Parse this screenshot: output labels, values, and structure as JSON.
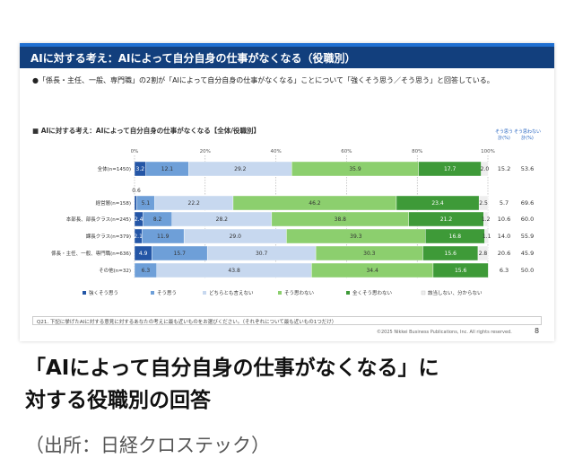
{
  "slide": {
    "header_title": "AIに対する考え：AIによって自分自身の仕事がなくなる（役職別）",
    "bullet": "●「係長・主任、一般、専門職」の2割が「AIによって自分自身の仕事がなくなる」ことについて「強くそう思う／そう思う」と回答している。",
    "chart_title": "■ AIに対する考え：AIによって自分自身の仕事がなくなる【全体/役職別】",
    "footnote": "Q21. 下記に挙げたAIに対する意見に対するあなたの考えに最も近いものをお選びください。（それぞれについて最も近いもの1つだけ）",
    "copyright": "©2025 Nikkei Business Publications, Inc. All rights reserved.",
    "page_number": "8"
  },
  "caption": {
    "line1": "「AIによって自分自身の仕事がなくなる」に",
    "line2": "対する役職別の回答",
    "source": "（出所：日経クロステック）"
  },
  "chart_data": {
    "type": "bar",
    "orientation": "horizontal-stacked-100",
    "title": "AIに対する考え：AIによって自分自身の仕事がなくなる【全体/役職別】",
    "xlim": [
      0,
      100
    ],
    "x_ticks": [
      "0%",
      "20%",
      "40%",
      "60%",
      "80%",
      "100%"
    ],
    "summary_headers": [
      "そう思う計(%)",
      "そう思わない計(%)"
    ],
    "categories": [
      "全体(n=1450)",
      "経営層(n=158)",
      "本部長、部長クラス(n=245)",
      "課長クラス(n=379)",
      "係長・主任、一般、専門職(n=636)",
      "その他(n=32)"
    ],
    "series": [
      {
        "name": "強くそう思う",
        "color": "#2456a6",
        "values": [
          3.2,
          0.6,
          2.4,
          2.1,
          4.9,
          0
        ]
      },
      {
        "name": "そう思う",
        "color": "#6e9fd8",
        "values": [
          12.1,
          5.1,
          8.2,
          11.9,
          15.7,
          6.3
        ]
      },
      {
        "name": "どちらとも言えない",
        "color": "#c7d8ef",
        "values": [
          29.2,
          22.2,
          28.2,
          29.0,
          30.7,
          43.8
        ]
      },
      {
        "name": "そう思わない",
        "color": "#8ccf6e",
        "values": [
          35.9,
          46.2,
          38.8,
          39.3,
          30.3,
          34.4
        ]
      },
      {
        "name": "全くそう思わない",
        "color": "#3e9a38",
        "values": [
          17.7,
          23.4,
          21.2,
          16.8,
          15.6,
          15.6
        ]
      },
      {
        "name": "該当しない、分からない",
        "color": "#eeeeee",
        "values": [
          2.0,
          2.5,
          1.2,
          1.1,
          2.8,
          0
        ]
      }
    ],
    "value_labels": [
      [
        "3.2",
        "12.1",
        "29.2",
        "35.9",
        "17.7",
        "2.0"
      ],
      [
        "0.6",
        "5.1",
        "22.2",
        "46.2",
        "23.4",
        "2.5"
      ],
      [
        "2.4",
        "8.2",
        "28.2",
        "38.8",
        "21.2",
        "1.2"
      ],
      [
        "2.1",
        "11.9",
        "29.0",
        "39.3",
        "16.8",
        "1.1"
      ],
      [
        "4.9",
        "15.7",
        "30.7",
        "30.3",
        "15.6",
        "2.8"
      ],
      [
        "",
        "6.3",
        "43.8",
        "34.4",
        "15.6",
        ""
      ]
    ],
    "agree_total": [
      "15.2",
      "5.7",
      "10.6",
      "14.0",
      "20.6",
      "6.3"
    ],
    "disagree_total": [
      "53.6",
      "69.6",
      "60.0",
      "55.9",
      "45.9",
      "50.0"
    ]
  }
}
